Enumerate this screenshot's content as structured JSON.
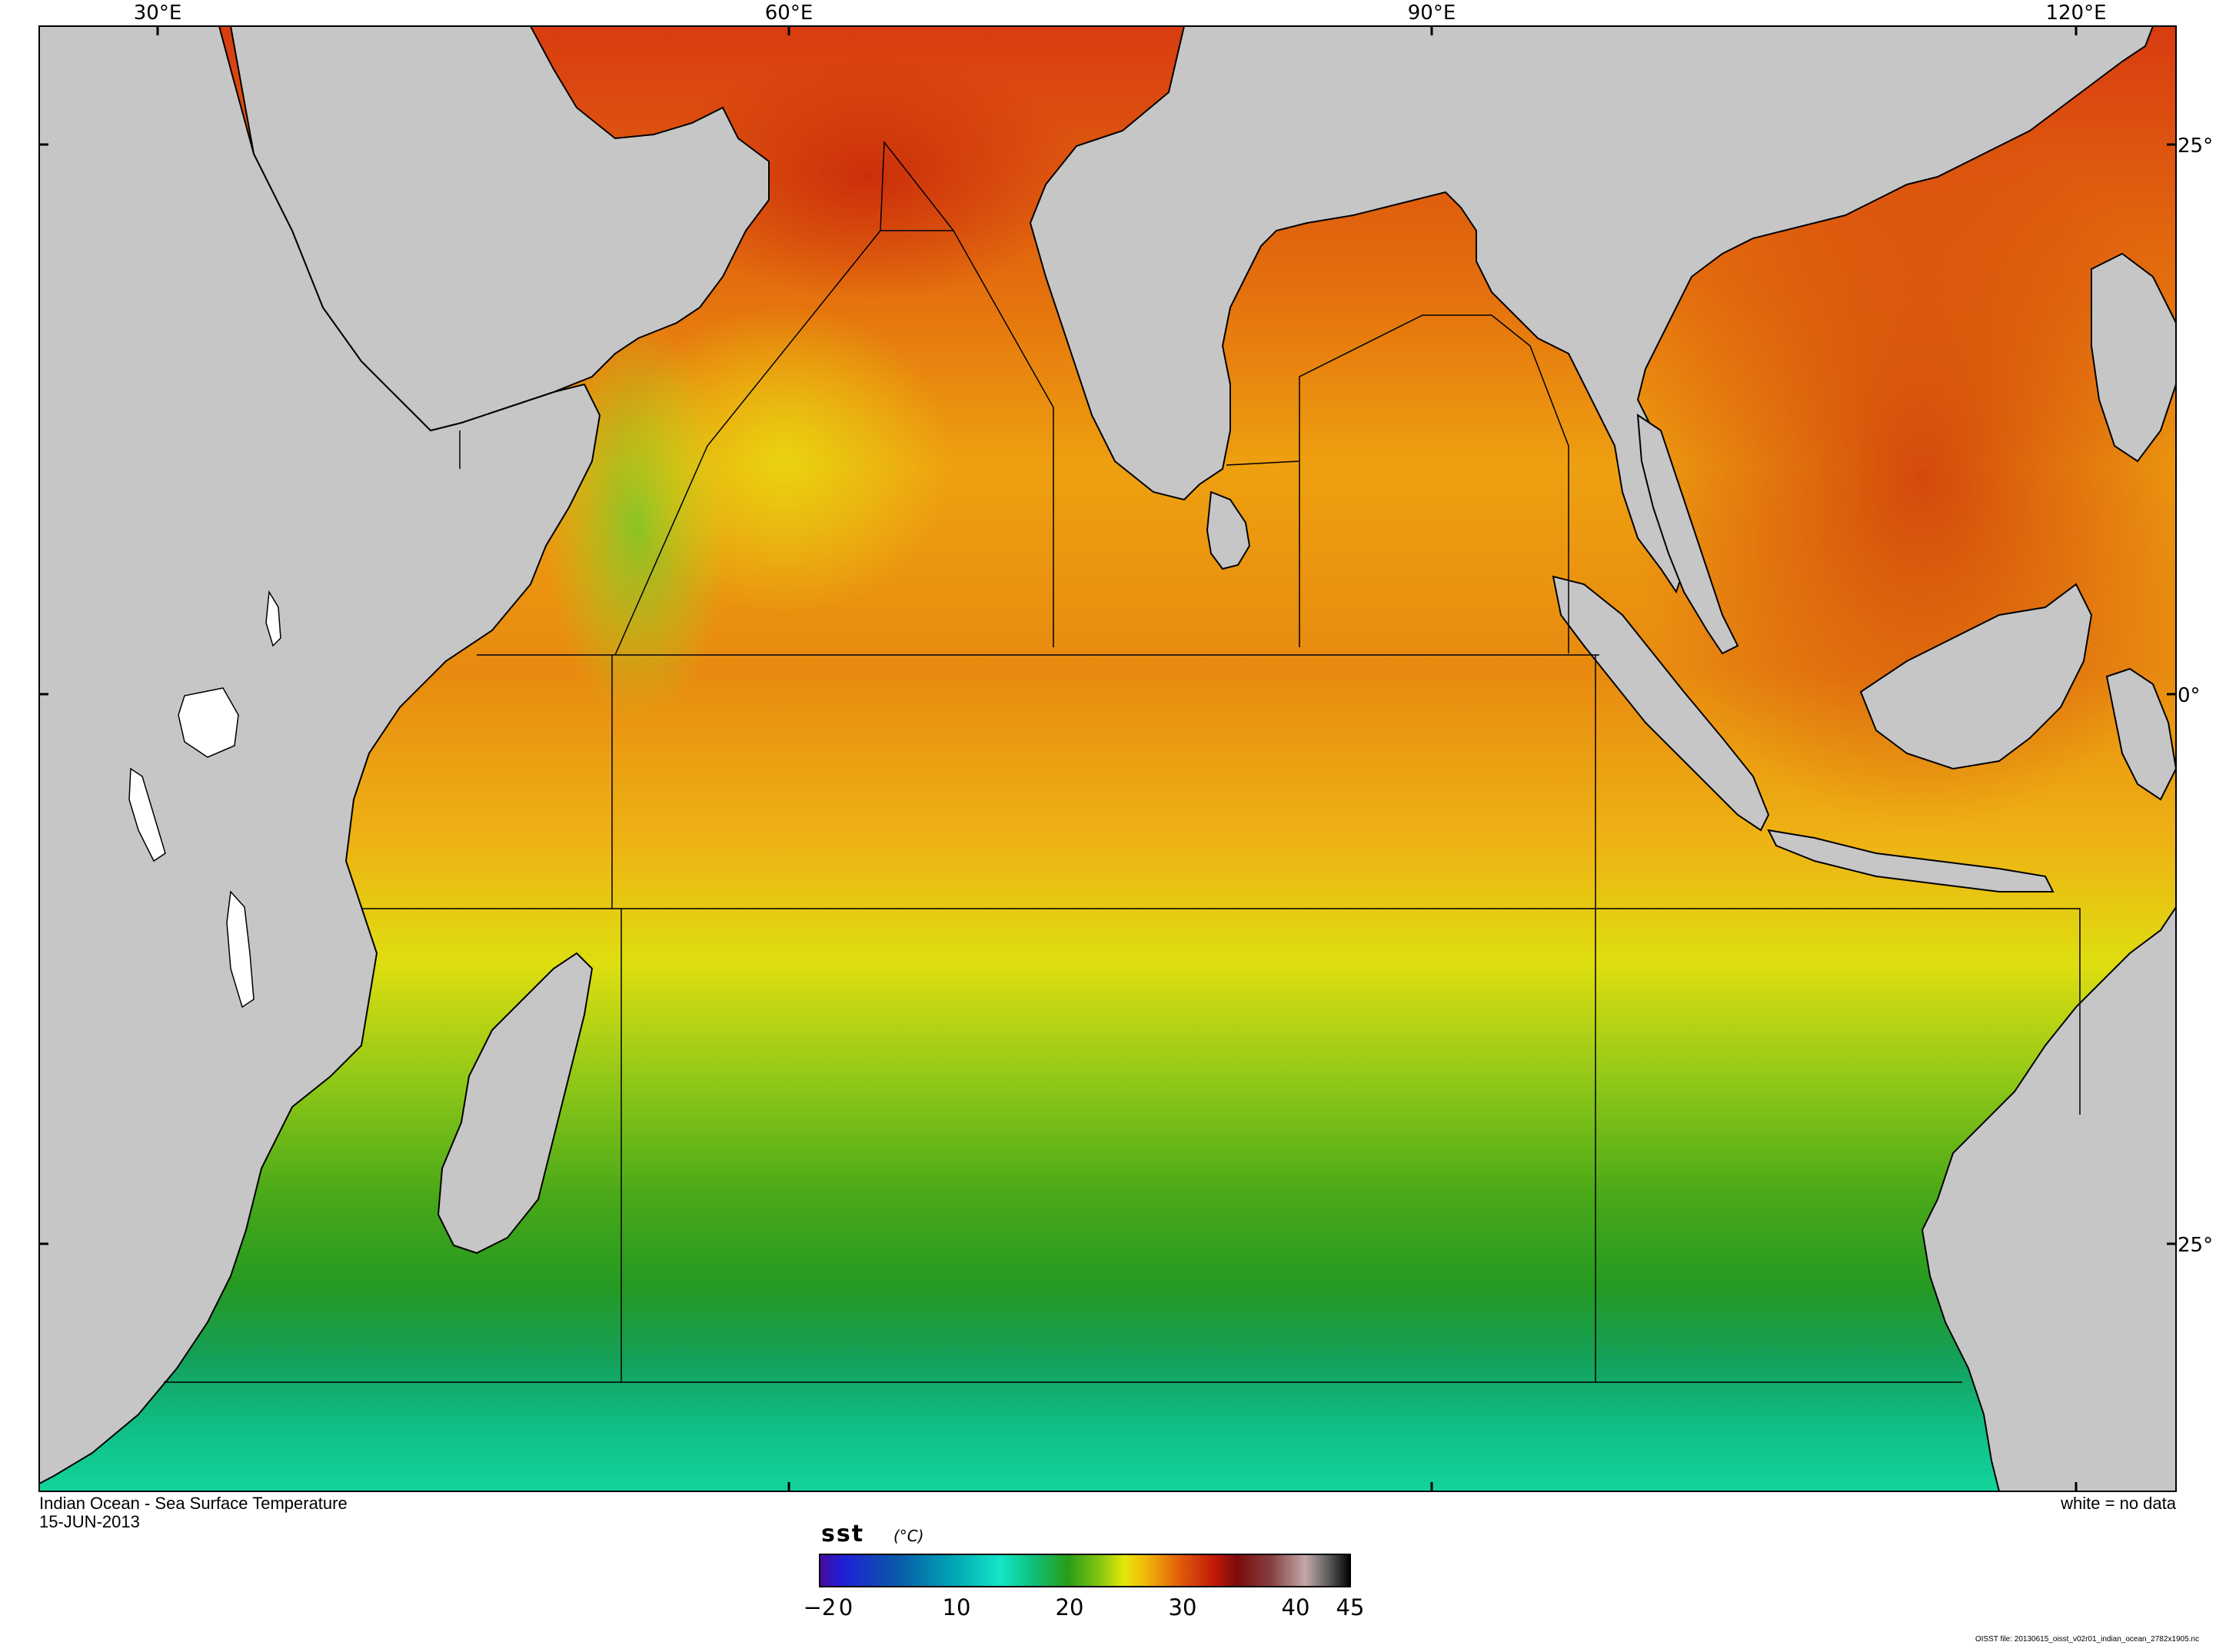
{
  "map": {
    "title": "Indian Ocean - Sea Surface Temperature",
    "date": "15-JUN-2013",
    "no_data_note": "white = no data",
    "longitude_labels": [
      "30°E",
      "60°E",
      "90°E",
      "120°E"
    ],
    "latitude_labels": [
      "25°",
      "0°",
      "25°"
    ],
    "land_color": "#c6c6c6",
    "no_data_color": "#ffffff"
  },
  "colorbar": {
    "variable": "sst",
    "units": "(°C)",
    "tick_labels": [
      "−2",
      "0",
      "10",
      "20",
      "30",
      "40",
      "45"
    ],
    "range": [
      -2,
      45
    ],
    "stops": [
      {
        "value": -2,
        "color": "#4a0a9e"
      },
      {
        "value": 0,
        "color": "#1f1fd6"
      },
      {
        "value": 5,
        "color": "#0a5aa8"
      },
      {
        "value": 10,
        "color": "#00a8b4"
      },
      {
        "value": 14,
        "color": "#14e6c8"
      },
      {
        "value": 17,
        "color": "#10be78"
      },
      {
        "value": 20,
        "color": "#2a9c18"
      },
      {
        "value": 23,
        "color": "#8cc810"
      },
      {
        "value": 25,
        "color": "#e6e80a"
      },
      {
        "value": 27,
        "color": "#f0b40a"
      },
      {
        "value": 30,
        "color": "#e05a0a"
      },
      {
        "value": 33,
        "color": "#c01808"
      },
      {
        "value": 35,
        "color": "#7c0c0c"
      },
      {
        "value": 38,
        "color": "#844040"
      },
      {
        "value": 41,
        "color": "#c4a8a8"
      },
      {
        "value": 43,
        "color": "#606060"
      },
      {
        "value": 45,
        "color": "#000000"
      }
    ]
  },
  "footer": {
    "file_note": "OISST file: 20130615_oisst_v02r01_indian_ocean_2782x1905.nc"
  }
}
